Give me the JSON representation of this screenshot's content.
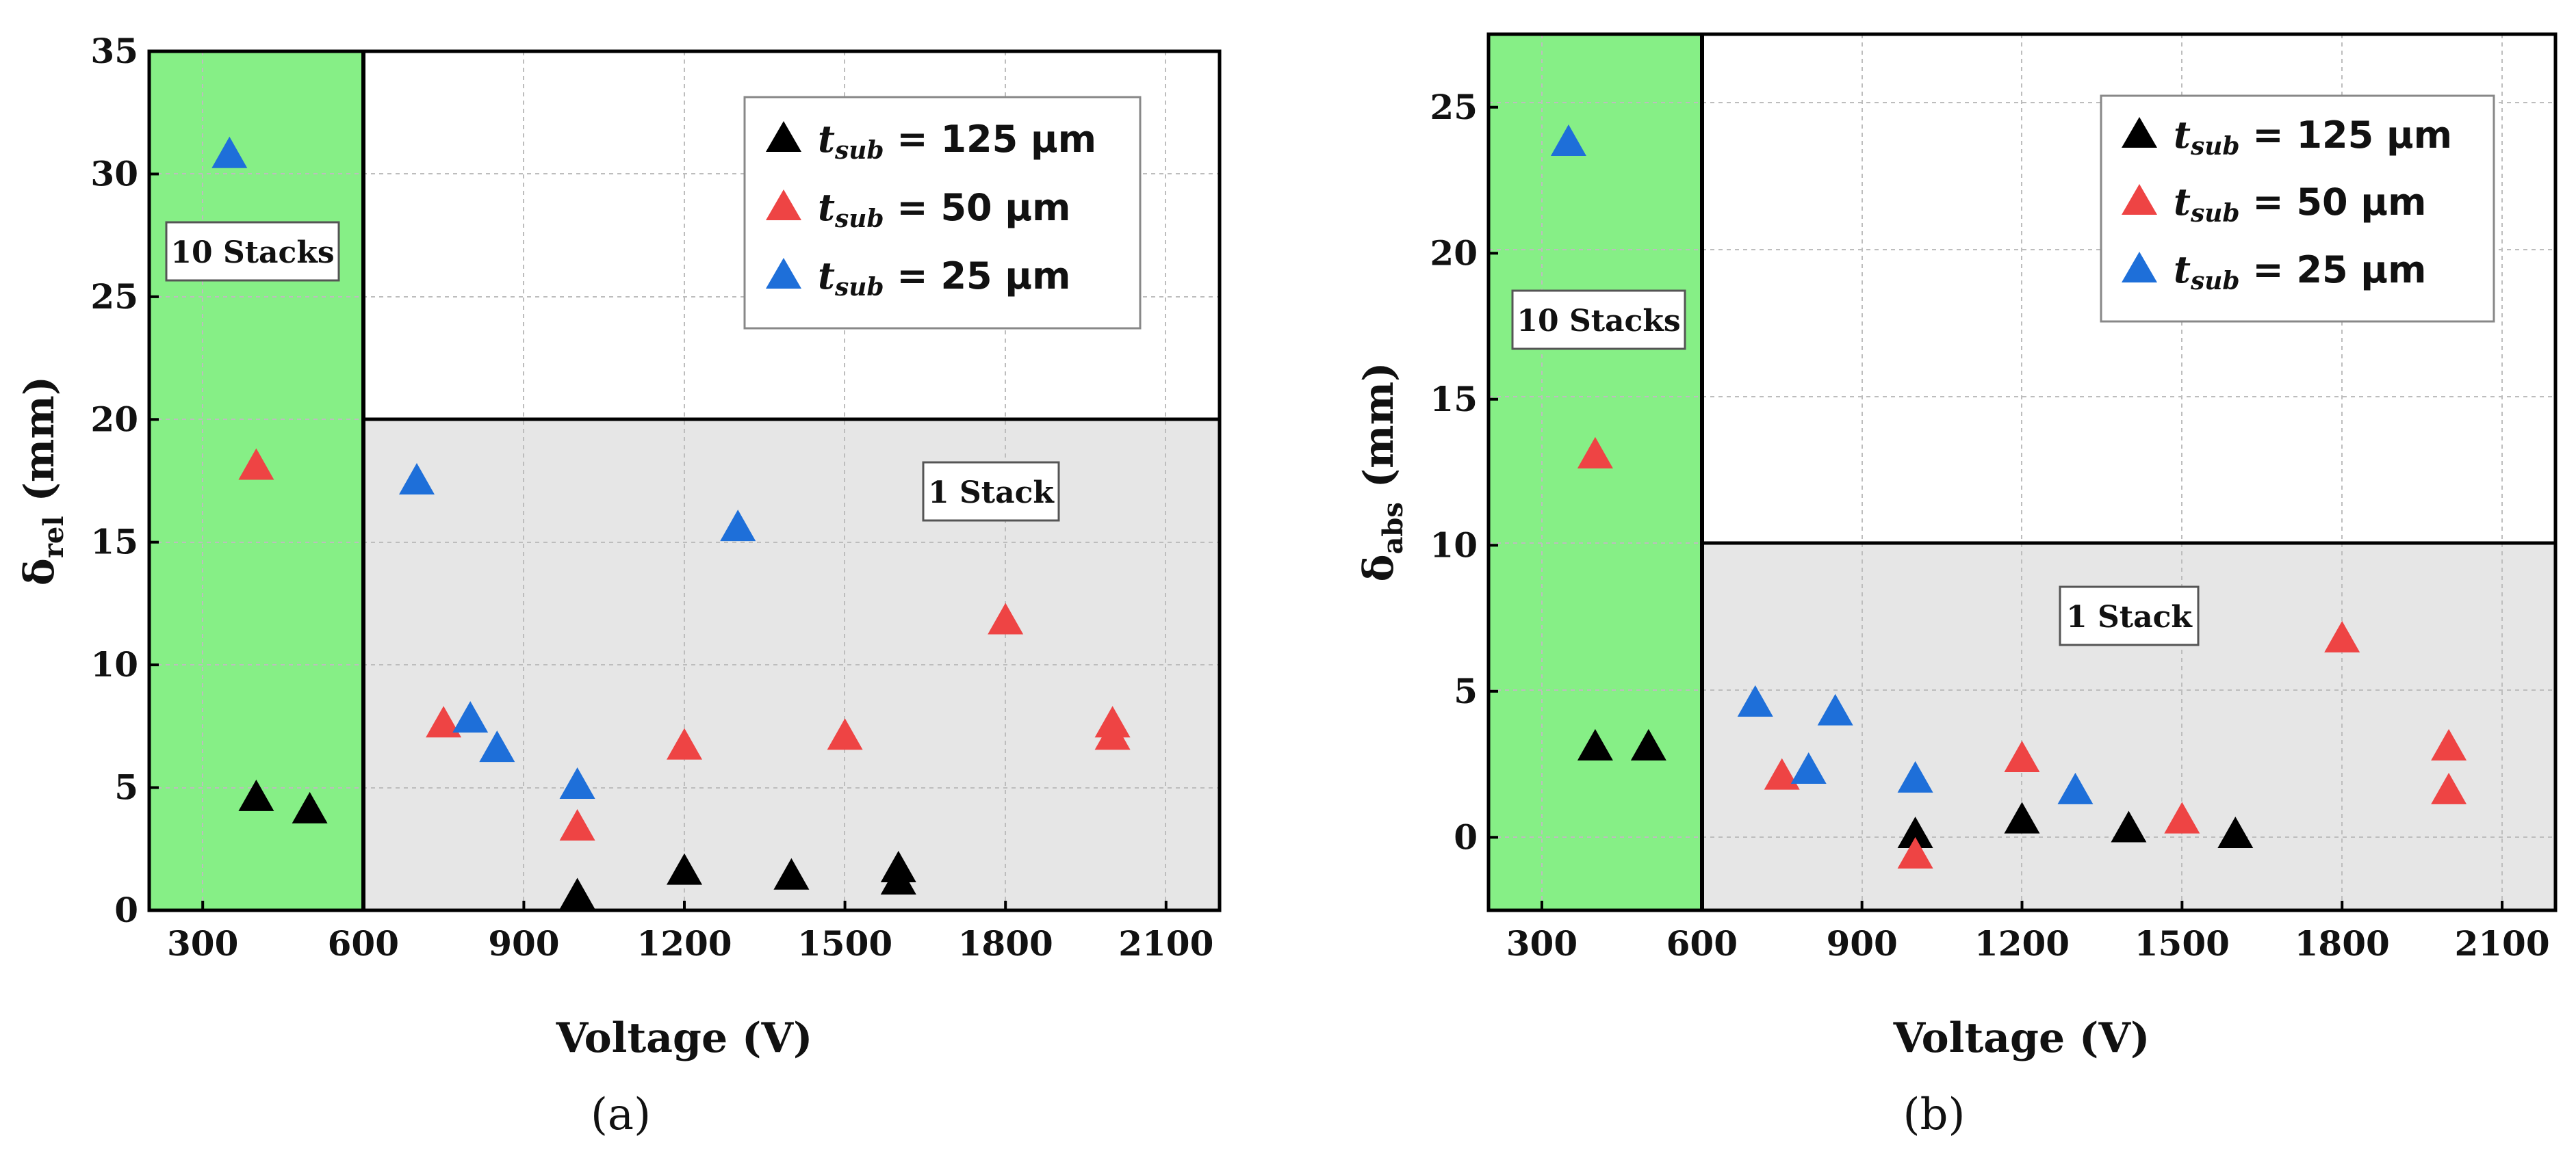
{
  "chart_data": [
    {
      "type": "scatter",
      "caption": "(a)",
      "xlabel": "Voltage (V)",
      "ylabel_main": "δ",
      "ylabel_sub": "rel",
      "ylabel_unit": " (mm)",
      "xlim": [
        200,
        2200
      ],
      "ylim": [
        0,
        35
      ],
      "xticks": [
        300,
        600,
        900,
        1200,
        1500,
        1800,
        2100
      ],
      "yticks": [
        0,
        5,
        10,
        15,
        20,
        25,
        30,
        35
      ],
      "grid": true,
      "legend_position": "top-right",
      "regions": [
        {
          "label": "10 Stacks",
          "x_from": 200,
          "x_to": 600,
          "y_from": 0,
          "y_to": 35,
          "fill": "#86ef86"
        },
        {
          "label": "1 Stack",
          "x_from": 600,
          "x_to": 2200,
          "y_from": 0,
          "y_to": 20,
          "fill": "#e6e6e6"
        }
      ],
      "series": [
        {
          "name": "125 μm",
          "color": "#000000",
          "points": [
            [
              400,
              4.6
            ],
            [
              500,
              4.1
            ],
            [
              1000,
              0.6
            ],
            [
              1200,
              1.6
            ],
            [
              1400,
              1.4
            ],
            [
              1600,
              1.7
            ],
            [
              1600,
              1.2
            ]
          ]
        },
        {
          "name": "50 μm",
          "color": "#ee4444",
          "points": [
            [
              400,
              18.1
            ],
            [
              750,
              7.6
            ],
            [
              1000,
              3.4
            ],
            [
              1200,
              6.7
            ],
            [
              1500,
              7.1
            ],
            [
              1800,
              11.8
            ],
            [
              2000,
              7.6
            ],
            [
              2000,
              7.1
            ]
          ]
        },
        {
          "name": "25 μm",
          "color": "#1e6fd9",
          "points": [
            [
              350,
              30.8
            ],
            [
              700,
              17.5
            ],
            [
              800,
              7.8
            ],
            [
              850,
              6.6
            ],
            [
              1000,
              5.1
            ],
            [
              1300,
              15.6
            ]
          ]
        }
      ]
    },
    {
      "type": "scatter",
      "caption": "(b)",
      "xlabel": "Voltage (V)",
      "ylabel_main": "δ",
      "ylabel_sub": "abs",
      "ylabel_unit": " (mm)",
      "xlim": [
        200,
        2200
      ],
      "ylim": [
        -2.5,
        27.5
      ],
      "xticks": [
        300,
        600,
        900,
        1200,
        1500,
        1800,
        2100
      ],
      "yticks": [
        0,
        5,
        10,
        15,
        20,
        25
      ],
      "grid": true,
      "legend_position": "top-right",
      "regions": [
        {
          "label": "10 Stacks",
          "x_from": 200,
          "x_to": 600,
          "y_from": -2.5,
          "y_to": 27.5,
          "fill": "#86ef86"
        },
        {
          "label": "1 Stack",
          "x_from": 600,
          "x_to": 2200,
          "y_from": -2.5,
          "y_to": 10,
          "fill": "#e6e6e6"
        }
      ],
      "series": [
        {
          "name": "125 μm",
          "color": "#000000",
          "points": [
            [
              400,
              3.1
            ],
            [
              500,
              3.1
            ],
            [
              1000,
              0.1
            ],
            [
              1200,
              0.6
            ],
            [
              1400,
              0.3
            ],
            [
              1600,
              0.1
            ]
          ]
        },
        {
          "name": "50 μm",
          "color": "#ee4444",
          "points": [
            [
              400,
              13.1
            ],
            [
              750,
              2.1
            ],
            [
              1000,
              -0.6
            ],
            [
              1200,
              2.7
            ],
            [
              1500,
              0.6
            ],
            [
              1800,
              6.8
            ],
            [
              2000,
              3.1
            ],
            [
              2000,
              1.6
            ]
          ]
        },
        {
          "name": "25 μm",
          "color": "#1e6fd9",
          "points": [
            [
              350,
              23.8
            ],
            [
              700,
              4.6
            ],
            [
              800,
              2.3
            ],
            [
              850,
              4.3
            ],
            [
              1000,
              2.0
            ],
            [
              1300,
              1.6
            ]
          ]
        }
      ]
    }
  ],
  "legend_symbol": {
    "main": "t",
    "sub": "sub",
    "eq": " = "
  }
}
